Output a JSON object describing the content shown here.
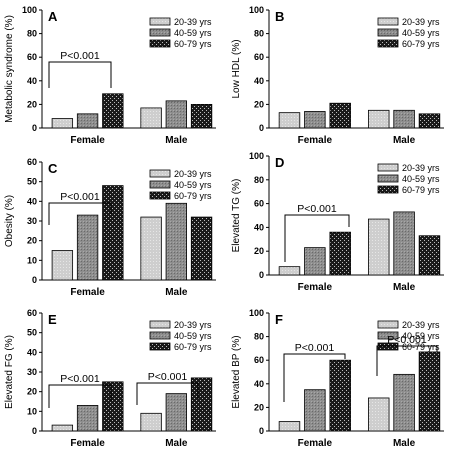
{
  "legend_labels": [
    "20-39 yrs",
    "40-59 yrs",
    "60-79 yrs"
  ],
  "colors": {
    "20-39 yrs": "#d0d0d0",
    "40-59 yrs": "#8a8a8a",
    "60-79 yrs": "#2a2a2a"
  },
  "chart_data": [
    {
      "type": "bar",
      "title": "A",
      "xlabel": "",
      "ylabel": "Metabolic syndrome (%)",
      "ylim": [
        0,
        100
      ],
      "yticks": [
        0,
        20,
        40,
        60,
        80,
        100
      ],
      "grid": false,
      "legend": "top-right",
      "categories": [
        "Female",
        "Male"
      ],
      "series": [
        {
          "name": "20-39 yrs",
          "values": [
            8,
            17
          ]
        },
        {
          "name": "40-59 yrs",
          "values": [
            12,
            23
          ]
        },
        {
          "name": "60-79 yrs",
          "values": [
            29,
            20
          ]
        }
      ],
      "annotations": [
        {
          "text": "P<0.001",
          "category": "Female"
        }
      ]
    },
    {
      "type": "bar",
      "title": "B",
      "xlabel": "",
      "ylabel": "Low HDL (%)",
      "ylim": [
        0,
        100
      ],
      "yticks": [
        0,
        20,
        40,
        60,
        80,
        100
      ],
      "grid": false,
      "legend": "top-right",
      "categories": [
        "Female",
        "Male"
      ],
      "series": [
        {
          "name": "20-39 yrs",
          "values": [
            13,
            15
          ]
        },
        {
          "name": "40-59 yrs",
          "values": [
            14,
            15
          ]
        },
        {
          "name": "60-79 yrs",
          "values": [
            21,
            12
          ]
        }
      ],
      "annotations": []
    },
    {
      "type": "bar",
      "title": "C",
      "xlabel": "",
      "ylabel": "Obesity (%)",
      "ylim": [
        0,
        60
      ],
      "yticks": [
        0,
        10,
        20,
        30,
        40,
        50,
        60
      ],
      "grid": false,
      "legend": "top-right",
      "categories": [
        "Female",
        "Male"
      ],
      "series": [
        {
          "name": "20-39 yrs",
          "values": [
            15,
            32
          ]
        },
        {
          "name": "40-59 yrs",
          "values": [
            33,
            39
          ]
        },
        {
          "name": "60-79 yrs",
          "values": [
            48,
            32
          ]
        }
      ],
      "annotations": [
        {
          "text": "P<0.001",
          "category": "Female"
        }
      ]
    },
    {
      "type": "bar",
      "title": "D",
      "xlabel": "",
      "ylabel": "Elevated TG (%)",
      "ylim": [
        0,
        100
      ],
      "yticks": [
        0,
        20,
        40,
        60,
        80,
        100
      ],
      "grid": false,
      "legend": "top-right",
      "categories": [
        "Female",
        "Male"
      ],
      "series": [
        {
          "name": "20-39 yrs",
          "values": [
            7,
            47
          ]
        },
        {
          "name": "40-59 yrs",
          "values": [
            23,
            53
          ]
        },
        {
          "name": "60-79 yrs",
          "values": [
            36,
            33
          ]
        }
      ],
      "annotations": [
        {
          "text": "P<0.001",
          "category": "Female"
        }
      ]
    },
    {
      "type": "bar",
      "title": "E",
      "xlabel": "",
      "ylabel": "Elevated FG (%)",
      "ylim": [
        0,
        60
      ],
      "yticks": [
        0,
        10,
        20,
        30,
        40,
        50,
        60
      ],
      "grid": false,
      "legend": "top-right",
      "categories": [
        "Female",
        "Male"
      ],
      "series": [
        {
          "name": "20-39 yrs",
          "values": [
            3,
            9
          ]
        },
        {
          "name": "40-59 yrs",
          "values": [
            13,
            19
          ]
        },
        {
          "name": "60-79 yrs",
          "values": [
            25,
            27
          ]
        }
      ],
      "annotations": [
        {
          "text": "P<0.001",
          "category": "Female"
        },
        {
          "text": "P<0.001",
          "category": "Male"
        }
      ]
    },
    {
      "type": "bar",
      "title": "F",
      "xlabel": "",
      "ylabel": "Elevated BP (%)",
      "ylim": [
        0,
        100
      ],
      "yticks": [
        0,
        20,
        40,
        60,
        80,
        100
      ],
      "grid": false,
      "legend": "top-right",
      "categories": [
        "Female",
        "Male"
      ],
      "series": [
        {
          "name": "20-39 yrs",
          "values": [
            8,
            28
          ]
        },
        {
          "name": "40-59 yrs",
          "values": [
            35,
            48
          ]
        },
        {
          "name": "60-79 yrs",
          "values": [
            60,
            67
          ]
        }
      ],
      "annotations": [
        {
          "text": "P<0.001",
          "category": "Female"
        },
        {
          "text": "P<0.001",
          "category": "Male"
        }
      ]
    }
  ]
}
